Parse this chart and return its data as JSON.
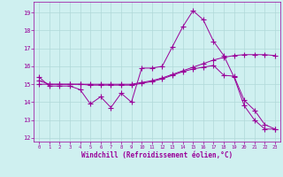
{
  "background_color": "#cff0f0",
  "grid_color": "#b0d8d8",
  "line_color": "#990099",
  "xlim": [
    -0.5,
    23.5
  ],
  "ylim": [
    11.8,
    19.6
  ],
  "yticks": [
    12,
    13,
    14,
    15,
    16,
    17,
    18,
    19
  ],
  "xticks": [
    0,
    1,
    2,
    3,
    4,
    5,
    6,
    7,
    8,
    9,
    10,
    11,
    12,
    13,
    14,
    15,
    16,
    17,
    18,
    19,
    20,
    21,
    22,
    23
  ],
  "xlabel": "Windchill (Refroidissement éolien,°C)",
  "series1_x": [
    0,
    1,
    2,
    3,
    4,
    5,
    6,
    7,
    8,
    9,
    10,
    11,
    12,
    13,
    14,
    15,
    16,
    17,
    18,
    19,
    20,
    21,
    22,
    23
  ],
  "series1_y": [
    15.4,
    14.9,
    14.9,
    14.9,
    14.7,
    13.9,
    14.3,
    13.7,
    14.5,
    14.0,
    15.9,
    15.9,
    16.0,
    17.1,
    18.2,
    19.1,
    18.6,
    17.4,
    16.6,
    15.4,
    13.8,
    13.0,
    12.5,
    12.5
  ],
  "series2_x": [
    0,
    1,
    2,
    3,
    4,
    5,
    6,
    7,
    8,
    9,
    10,
    11,
    12,
    13,
    14,
    15,
    16,
    17,
    18,
    19,
    20,
    21,
    22,
    23
  ],
  "series2_y": [
    15.2,
    15.0,
    15.0,
    15.0,
    15.0,
    14.95,
    14.95,
    14.95,
    14.95,
    14.95,
    15.05,
    15.15,
    15.3,
    15.5,
    15.7,
    15.85,
    15.95,
    16.05,
    15.5,
    15.45,
    14.1,
    13.55,
    12.75,
    12.5
  ],
  "series3_x": [
    0,
    1,
    2,
    3,
    4,
    5,
    6,
    7,
    8,
    9,
    10,
    11,
    12,
    13,
    14,
    15,
    16,
    17,
    18,
    19,
    20,
    21,
    22,
    23
  ],
  "series3_y": [
    15.0,
    15.0,
    15.0,
    15.0,
    15.0,
    15.0,
    15.0,
    15.0,
    15.0,
    15.0,
    15.1,
    15.2,
    15.35,
    15.55,
    15.75,
    15.95,
    16.15,
    16.35,
    16.5,
    16.6,
    16.65,
    16.65,
    16.65,
    16.6
  ]
}
